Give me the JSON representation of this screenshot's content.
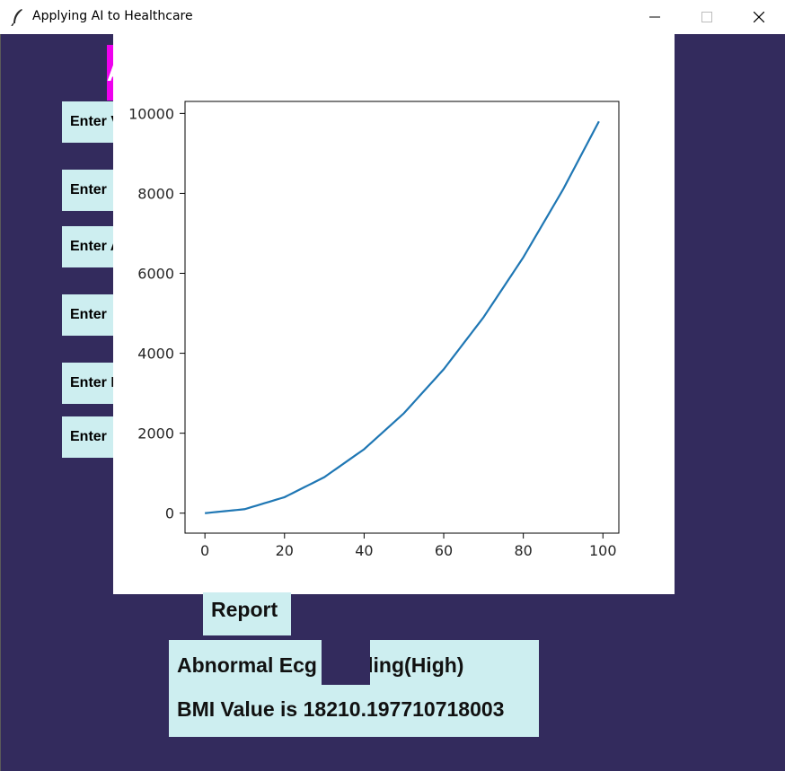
{
  "window": {
    "title": "Applying AI to Healthcare",
    "icon": "feather-icon",
    "controls": [
      "minimize-icon",
      "maximize-icon",
      "close-icon"
    ]
  },
  "form": {
    "header_text": "A",
    "entry_labels": [
      "Enter V",
      "Enter",
      "Enter A",
      "Enter",
      "Enter I",
      "Enter"
    ]
  },
  "report": {
    "title": "Report",
    "ecg_text": "Abnormal Ecg Reading(High)",
    "bmi_text": "BMI Value is 18210.197710718003"
  },
  "colors": {
    "background": "#332b5d",
    "label_bg": "#cdeef0",
    "accent": "#ee00ee",
    "line": "#1f77b4"
  },
  "chart_data": {
    "type": "line",
    "title": "",
    "xlabel": "",
    "ylabel": "",
    "xlim": [
      -5,
      104
    ],
    "ylim": [
      -500,
      10300
    ],
    "xticks": [
      0,
      20,
      40,
      60,
      80,
      100
    ],
    "yticks": [
      0,
      2000,
      4000,
      6000,
      8000,
      10000
    ],
    "grid": false,
    "legend": "none",
    "series": [
      {
        "x": [
          0,
          10,
          20,
          30,
          40,
          50,
          60,
          70,
          80,
          90,
          99
        ],
        "values": [
          0,
          100,
          400,
          900,
          1600,
          2500,
          3600,
          4900,
          6400,
          8100,
          9801
        ]
      }
    ]
  }
}
